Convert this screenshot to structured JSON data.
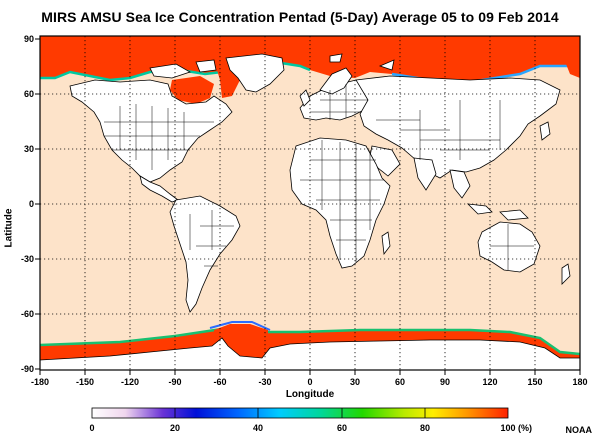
{
  "title": "MIRS AMSU Sea Ice Concentration Pentad (5-Day) Average  05 to 09 Feb 2014",
  "axes": {
    "xlabel": "Longitude",
    "ylabel": "Latitude",
    "x_ticks": [
      "-180",
      "-150",
      "-120",
      "-90",
      "-60",
      "-30",
      "0",
      "30",
      "60",
      "90",
      "120",
      "150",
      "180"
    ],
    "y_ticks": [
      "90",
      "60",
      "30",
      "0",
      "-30",
      "-60",
      "-90"
    ],
    "xlim": [
      -180,
      180
    ],
    "ylim": [
      -90,
      90
    ],
    "grid": true
  },
  "colorbar": {
    "ticks": [
      "0",
      "20",
      "40",
      "60",
      "80",
      "100"
    ],
    "unit": "(%)",
    "range": [
      0,
      100
    ]
  },
  "credit": "NOAA",
  "colors": {
    "ocean": "#fde3c9",
    "land": "#ffffff",
    "ice_full": "#ff3a00"
  }
}
